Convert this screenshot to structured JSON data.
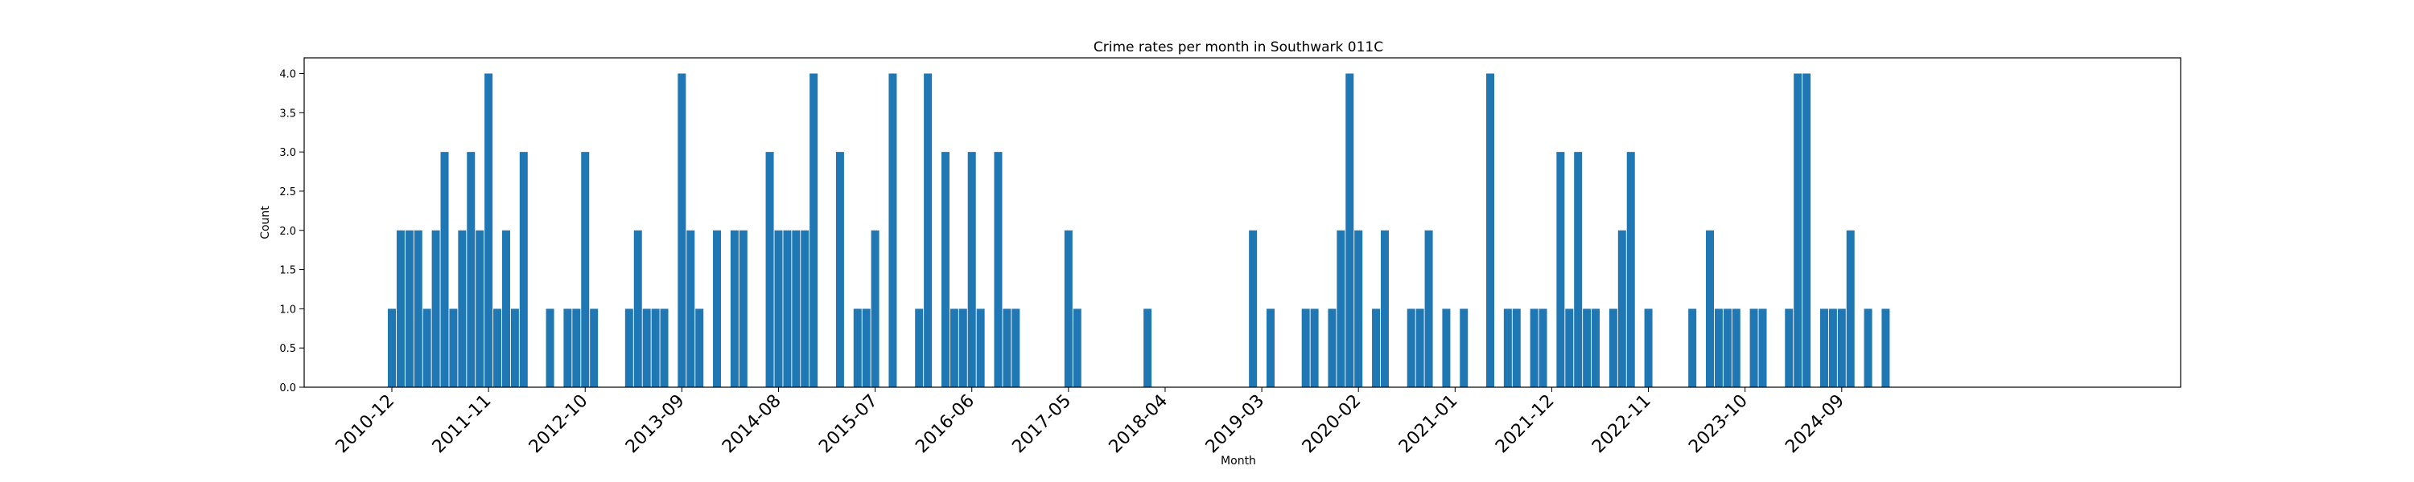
{
  "chart_data": {
    "type": "bar",
    "title": "Crime rates per month in Southwark 011C",
    "xlabel": "Month",
    "ylabel": "Count",
    "ylim": [
      0,
      4.2
    ],
    "yticks": [
      "0.0",
      "0.5",
      "1.0",
      "1.5",
      "2.0",
      "2.5",
      "3.0",
      "3.5",
      "4.0"
    ],
    "xticks": [
      "2010-12",
      "2011-11",
      "2012-10",
      "2013-09",
      "2014-08",
      "2015-07",
      "2016-06",
      "2017-05",
      "2018-04",
      "2019-03",
      "2020-02",
      "2021-01",
      "2021-12",
      "2022-11",
      "2023-10",
      "2024-09"
    ],
    "grid": false,
    "color": "#1f77b4",
    "categories": [
      "2010-12",
      "2011-01",
      "2011-02",
      "2011-03",
      "2011-04",
      "2011-05",
      "2011-06",
      "2011-07",
      "2011-08",
      "2011-09",
      "2011-10",
      "2011-11",
      "2011-12",
      "2012-01",
      "2012-02",
      "2012-03",
      "2012-06",
      "2012-08",
      "2012-09",
      "2012-10",
      "2012-11",
      "2013-03",
      "2013-04",
      "2013-05",
      "2013-06",
      "2013-07",
      "2013-09",
      "2013-10",
      "2013-11",
      "2014-01",
      "2014-03",
      "2014-04",
      "2014-07",
      "2014-08",
      "2014-09",
      "2014-10",
      "2014-11",
      "2014-12",
      "2015-03",
      "2015-05",
      "2015-06",
      "2015-07",
      "2015-09",
      "2015-12",
      "2016-01",
      "2016-03",
      "2016-04",
      "2016-05",
      "2016-06",
      "2016-07",
      "2016-09",
      "2016-10",
      "2016-11",
      "2017-05",
      "2017-06",
      "2018-02",
      "2019-02",
      "2019-04",
      "2019-08",
      "2019-09",
      "2019-11",
      "2019-12",
      "2020-01",
      "2020-02",
      "2020-04",
      "2020-05",
      "2020-08",
      "2020-09",
      "2020-10",
      "2020-12",
      "2021-02",
      "2021-05",
      "2021-07",
      "2021-08",
      "2021-10",
      "2021-11",
      "2022-01",
      "2022-02",
      "2022-03",
      "2022-04",
      "2022-05",
      "2022-07",
      "2022-08",
      "2022-09",
      "2022-11",
      "2023-04",
      "2023-06",
      "2023-07",
      "2023-08",
      "2023-09",
      "2023-11",
      "2023-12",
      "2024-03",
      "2024-04",
      "2024-05",
      "2024-07",
      "2024-08",
      "2024-09",
      "2024-10",
      "2024-12",
      "2025-02"
    ],
    "values": [
      1,
      2,
      2,
      2,
      1,
      2,
      3,
      1,
      2,
      3,
      2,
      4,
      1,
      2,
      1,
      3,
      1,
      1,
      1,
      3,
      1,
      1,
      2,
      1,
      1,
      1,
      4,
      2,
      1,
      2,
      2,
      2,
      3,
      2,
      2,
      2,
      2,
      4,
      3,
      1,
      1,
      2,
      4,
      1,
      4,
      3,
      1,
      1,
      3,
      1,
      3,
      1,
      1,
      2,
      1,
      1,
      2,
      1,
      1,
      1,
      1,
      2,
      4,
      2,
      1,
      2,
      1,
      1,
      2,
      1,
      1,
      4,
      1,
      1,
      1,
      1,
      3,
      1,
      3,
      1,
      1,
      1,
      2,
      3,
      1,
      1,
      2,
      1,
      1,
      1,
      1,
      1,
      1,
      4,
      4,
      1,
      1,
      1,
      2,
      1,
      1
    ]
  }
}
